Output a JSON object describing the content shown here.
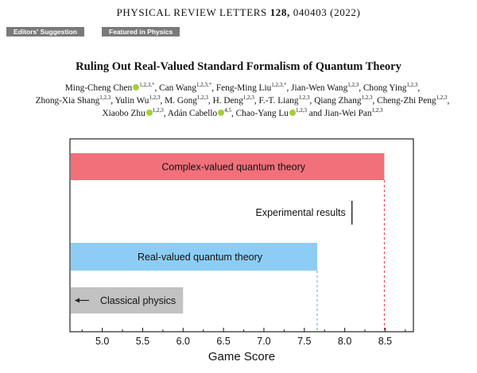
{
  "header": {
    "journal": "PHYSICAL REVIEW LETTERS",
    "volume": "128,",
    "article": "040403 (2022)"
  },
  "badges": [
    "Editors' Suggestion",
    "Featured in Physics"
  ],
  "title": "Ruling Out Real-Valued Standard Formalism of Quantum Theory",
  "authors": [
    {
      "name": "Ming-Cheng Chen",
      "orcid": true,
      "aff": "1,2,3,",
      "star": "*"
    },
    {
      "name": "Can Wang",
      "orcid": false,
      "aff": "1,2,3,",
      "star": "*"
    },
    {
      "name": "Feng-Ming Liu",
      "orcid": false,
      "aff": "1,2,3,",
      "star": "*"
    },
    {
      "name": "Jian-Wen Wang",
      "orcid": false,
      "aff": "1,2,3",
      "star": ""
    },
    {
      "name": "Chong Ying",
      "orcid": false,
      "aff": "1,2,3",
      "star": ""
    },
    {
      "name": "Zhong-Xia Shang",
      "orcid": false,
      "aff": "1,2,3",
      "star": ""
    },
    {
      "name": "Yulin Wu",
      "orcid": false,
      "aff": "1,2,3",
      "star": ""
    },
    {
      "name": "M. Gong",
      "orcid": false,
      "aff": "1,2,3",
      "star": ""
    },
    {
      "name": "H. Deng",
      "orcid": false,
      "aff": "1,2,3",
      "star": ""
    },
    {
      "name": "F.-T. Liang",
      "orcid": false,
      "aff": "1,2,3",
      "star": ""
    },
    {
      "name": "Qiang Zhang",
      "orcid": false,
      "aff": "1,2,3",
      "star": ""
    },
    {
      "name": "Cheng-Zhi Peng",
      "orcid": false,
      "aff": "1,2,3",
      "star": ""
    },
    {
      "name": "Xiaobo Zhu",
      "orcid": true,
      "aff": "1,2,3",
      "star": ""
    },
    {
      "name": "Adán Cabello",
      "orcid": true,
      "aff": "4,5",
      "star": ""
    },
    {
      "name": "Chao-Yang Lu",
      "orcid": true,
      "aff": "1,2,3",
      "star": ""
    },
    {
      "name": "Jian-Wei Pan",
      "orcid": false,
      "aff": "1,2,3",
      "star": ""
    }
  ],
  "authors_conjunction": "and",
  "chart_data": {
    "type": "bar",
    "orientation": "horizontal",
    "xlabel": "Game Score",
    "xlim": [
      4.6,
      8.85
    ],
    "xticks": [
      "5.0",
      "5.5",
      "6.0",
      "6.5",
      "7.0",
      "7.5",
      "8.0",
      "8.5"
    ],
    "grid": false,
    "bars": [
      {
        "label": "Complex-valued quantum theory",
        "value": 8.49,
        "color": "#f2707a",
        "guide_color": "#e8303a"
      },
      {
        "label": "Real-valued quantum theory",
        "value": 7.66,
        "color": "#8dcdf5",
        "guide_color": "#4aa8e8"
      },
      {
        "label": "Classical physics",
        "value": 6.0,
        "color": "#c2c2c2",
        "arrow": "left"
      }
    ],
    "experimental": {
      "label": "Experimental results",
      "value": 8.09
    }
  }
}
